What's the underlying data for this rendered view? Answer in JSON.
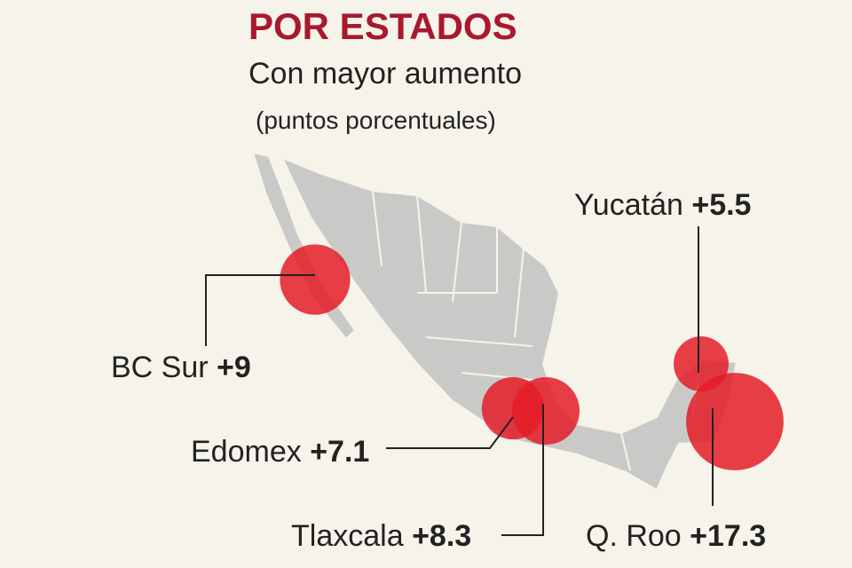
{
  "title": "POR ESTADOS",
  "subtitle": "Con mayor aumento",
  "note": "(puntos porcentuales)",
  "states": [
    {
      "name": "BC Sur",
      "value": 9,
      "label": "+9"
    },
    {
      "name": "Edomex",
      "value": 7.1,
      "label": "+7.1"
    },
    {
      "name": "Tlaxcala",
      "value": 8.3,
      "label": "+8.3"
    },
    {
      "name": "Yucatán",
      "value": 5.5,
      "label": "+5.5"
    },
    {
      "name": "Q. Roo",
      "value": 17.3,
      "label": "+17.3"
    }
  ]
}
